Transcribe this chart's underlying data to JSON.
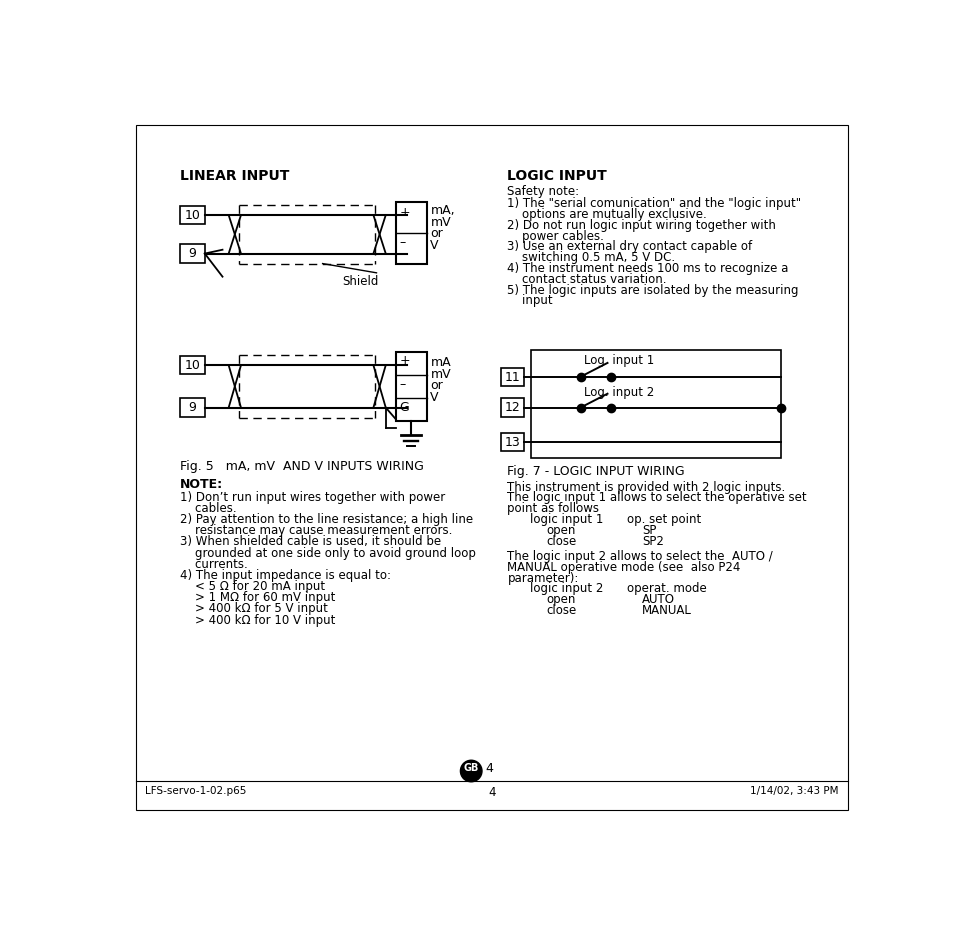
{
  "bg_color": "#ffffff",
  "page_width": 9.6,
  "page_height": 9.26,
  "title_linear": "LINEAR INPUT",
  "logic_input_title": "LOGIC INPUT",
  "fig5_caption": "Fig. 5   mA, mV  AND V INPUTS WIRING",
  "fig7_caption": "Fig. 7 - LOGIC INPUT WIRING",
  "note_title": "NOTE:",
  "note_lines": [
    "1) Don’t run input wires together with power",
    "    cables.",
    "2) Pay attention to the line resistance; a high line",
    "    resistance may cause measurement errors.",
    "3) When shielded cable is used, it should be",
    "    grounded at one side only to avoid ground loop",
    "    currents.",
    "4) The input impedance is equal to:",
    "    < 5 Ω for 20 mA input",
    "    > 1 MΩ for 60 mV input",
    "    > 400 kΩ for 5 V input",
    "    > 400 kΩ for 10 V input"
  ],
  "logic_safety_title": "Safety note:",
  "logic_safety_lines": [
    "1) The \"serial comunication\" and the \"logic input\"",
    "    options are mutually exclusive.",
    "2) Do not run logic input wiring together with",
    "    power cables.",
    "3) Use an external dry contact capable of",
    "    switching 0.5 mA, 5 V DC.",
    "4) The instrument needs 100 ms to recognize a",
    "    contact status variation.",
    "5) The logic inputs are isolated by the measuring",
    "    input"
  ],
  "fig7_desc_line1": "This instrument is provided with 2 logic inputs.",
  "fig7_desc_line2": "The logic input 1 allows to select the operative set",
  "fig7_desc_line3": "point as follows",
  "fig7_table1_col1": "logic input 1",
  "fig7_table1_col2": "op. set point",
  "fig7_row1_col1": "open",
  "fig7_row1_col2": "SP",
  "fig7_row2_col1": "close",
  "fig7_row2_col2": "SP2",
  "fig7_desc_line4": "The logic input 2 allows to select the  AUTO /",
  "fig7_desc_line5": "MANUAL operative mode (see  also P24",
  "fig7_desc_line6": "parameter):",
  "fig7_table2_col1": "logic input 2",
  "fig7_table2_col2": "operat. mode",
  "fig7_row3_col1": "open",
  "fig7_row3_col2": "AUTO",
  "fig7_row4_col1": "close",
  "fig7_row4_col2": "MANUAL",
  "footer_left": "LFS-servo-1-02.p65",
  "footer_center": "4",
  "footer_right": "1/14/02, 3:43 PM",
  "gb_label": "GB",
  "page_num": "4"
}
